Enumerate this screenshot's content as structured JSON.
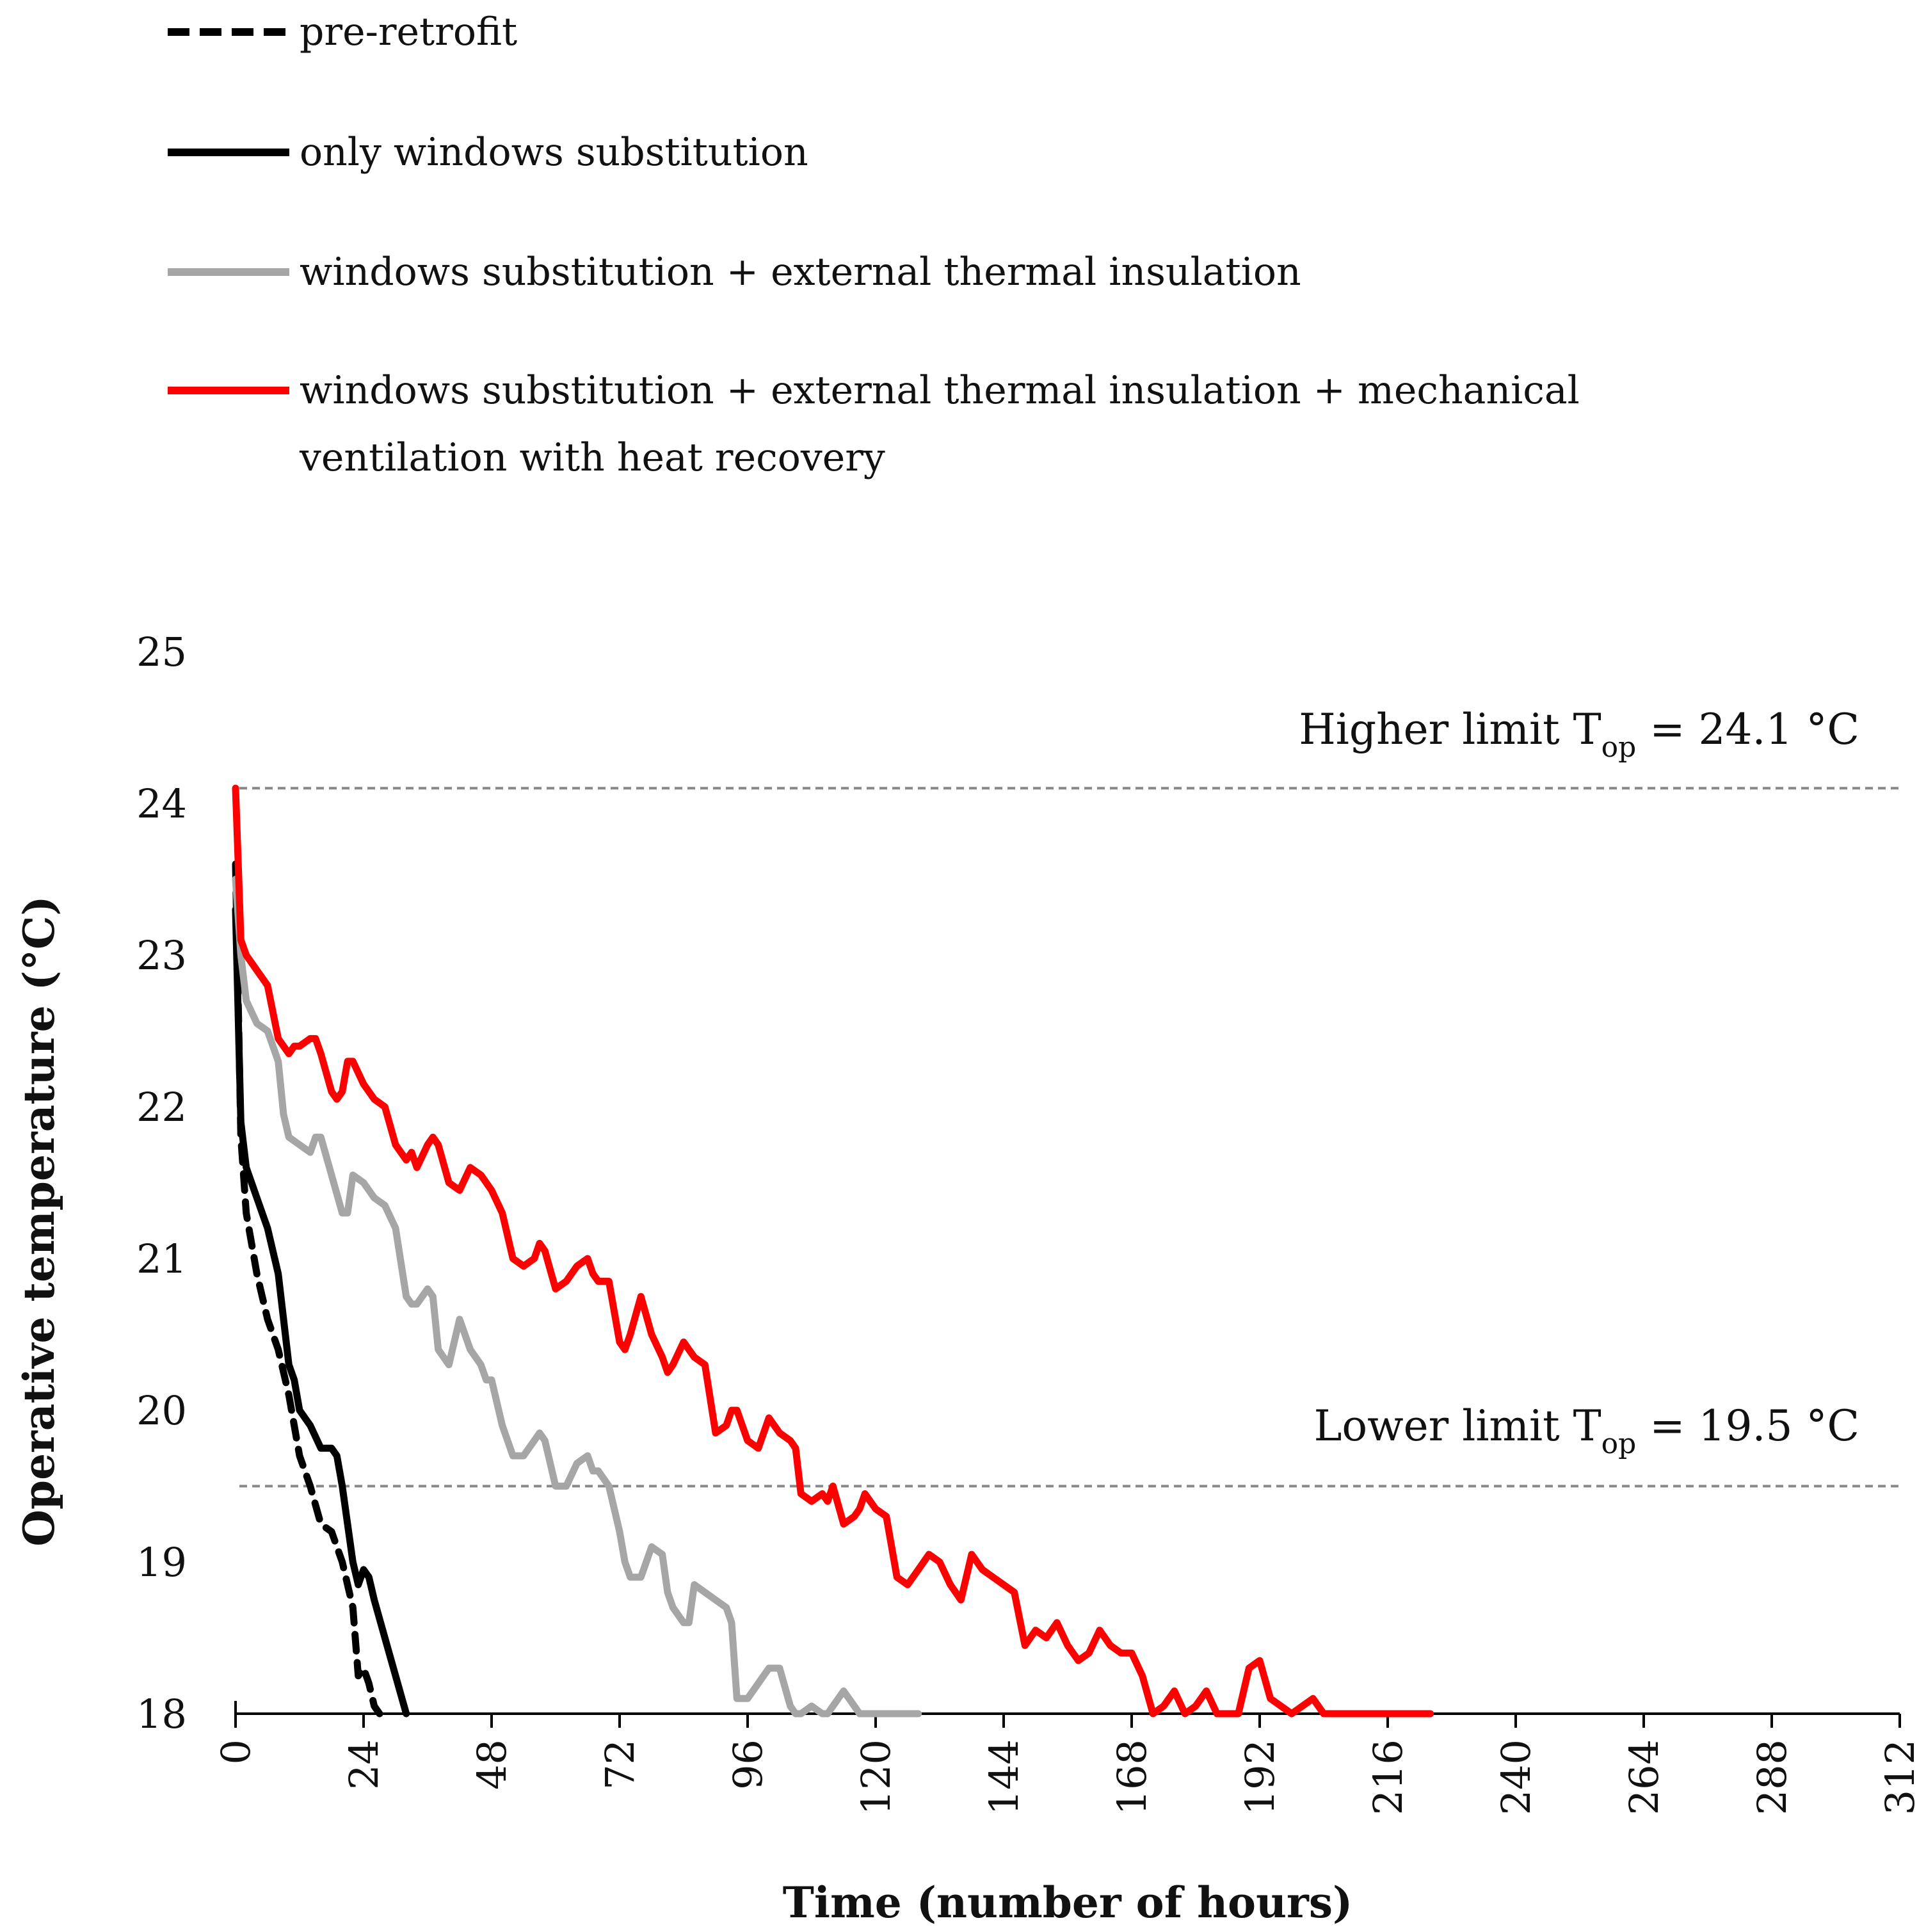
{
  "chart_data": {
    "type": "line",
    "title": "",
    "xlabel": "Time (number of hours)",
    "ylabel": "Operative temperature (°C)",
    "xlim": [
      0,
      312
    ],
    "ylim": [
      18,
      25
    ],
    "xticks": [
      0,
      24,
      48,
      72,
      96,
      120,
      144,
      168,
      192,
      216,
      240,
      264,
      288,
      312
    ],
    "yticks": [
      18,
      19,
      20,
      21,
      22,
      23,
      24,
      25
    ],
    "legend_position": "top",
    "reference_lines": [
      {
        "name": "higher-limit",
        "value": 24.1,
        "label_main": "Higher limit T",
        "label_sub": "op",
        "label_tail": " = 24.1 °C",
        "color": "#888888"
      },
      {
        "name": "lower-limit",
        "value": 19.5,
        "label_main": "Lower limit T",
        "label_sub": "op",
        "label_tail": " = 19.5 °C",
        "color": "#888888"
      }
    ],
    "series": [
      {
        "name": "pre-retrofit",
        "label": [
          "pre-retrofit"
        ],
        "color": "#000000",
        "dash": true,
        "x": [
          0,
          1,
          2,
          3,
          4,
          6,
          8,
          10,
          12,
          14,
          16,
          18,
          20,
          22,
          23,
          24,
          25,
          26,
          27
        ],
        "y": [
          23.6,
          21.8,
          21.3,
          21.1,
          20.9,
          20.6,
          20.4,
          20.1,
          19.7,
          19.5,
          19.25,
          19.2,
          19.0,
          18.7,
          18.25,
          18.3,
          18.2,
          18.05,
          18.0
        ]
      },
      {
        "name": "only-windows-substitution",
        "label": [
          "only windows substitution"
        ],
        "color": "#000000",
        "dash": false,
        "x": [
          0,
          1,
          2,
          3,
          4,
          6,
          8,
          9,
          10,
          11,
          12,
          14,
          16,
          18,
          19,
          20,
          22,
          23,
          24,
          25,
          26,
          28,
          30,
          32
        ],
        "y": [
          23.3,
          21.9,
          21.6,
          21.5,
          21.4,
          21.2,
          20.9,
          20.6,
          20.3,
          20.2,
          20.0,
          19.9,
          19.75,
          19.75,
          19.7,
          19.5,
          19.0,
          18.85,
          18.95,
          18.9,
          18.75,
          18.5,
          18.25,
          18.0
        ]
      },
      {
        "name": "windows-substitution-external-insulation",
        "label": [
          "windows substitution + external thermal insulation"
        ],
        "color": "#a6a6a6",
        "dash": false,
        "x": [
          0,
          1,
          2,
          4,
          6,
          8,
          9,
          10,
          12,
          14,
          15,
          16,
          18,
          20,
          21,
          22,
          24,
          26,
          28,
          30,
          32,
          33,
          34,
          36,
          37,
          38,
          40,
          42,
          44,
          46,
          47,
          48,
          50,
          52,
          54,
          56,
          57,
          58,
          60,
          62,
          64,
          66,
          67,
          68,
          70,
          72,
          73,
          74,
          76,
          78,
          80,
          81,
          82,
          84,
          85,
          86,
          88,
          90,
          92,
          93,
          94,
          96,
          98,
          100,
          102,
          104,
          105,
          106,
          108,
          110,
          111,
          112,
          114,
          116,
          117,
          118,
          120,
          122,
          124,
          126,
          128
        ],
        "y": [
          23.5,
          23.0,
          22.7,
          22.55,
          22.5,
          22.3,
          21.95,
          21.8,
          21.75,
          21.7,
          21.8,
          21.8,
          21.55,
          21.3,
          21.3,
          21.55,
          21.5,
          21.4,
          21.35,
          21.2,
          20.75,
          20.7,
          20.7,
          20.8,
          20.75,
          20.4,
          20.3,
          20.6,
          20.4,
          20.3,
          20.2,
          20.2,
          19.9,
          19.7,
          19.7,
          19.8,
          19.85,
          19.8,
          19.5,
          19.5,
          19.65,
          19.7,
          19.6,
          19.6,
          19.5,
          19.2,
          19.0,
          18.9,
          18.9,
          19.1,
          19.05,
          18.8,
          18.7,
          18.6,
          18.6,
          18.85,
          18.8,
          18.75,
          18.7,
          18.6,
          18.1,
          18.1,
          18.2,
          18.3,
          18.3,
          18.05,
          18.0,
          18.0,
          18.05,
          18.0,
          18.0,
          18.05,
          18.15,
          18.05,
          18.0,
          18.0,
          18.0,
          18.0,
          18.0,
          18.0,
          18.0
        ]
      },
      {
        "name": "windows-substitution-external-insulation-mvhr",
        "label": [
          "windows substitution + external thermal insulation + mechanical",
          "ventilation with heat recovery"
        ],
        "color": "#ff0000",
        "dash": false,
        "x": [
          0,
          0.5,
          1,
          2,
          3,
          4,
          6,
          8,
          9,
          10,
          11,
          12,
          14,
          15,
          16,
          18,
          19,
          20,
          21,
          22,
          24,
          26,
          28,
          30,
          32,
          33,
          34,
          36,
          37,
          38,
          40,
          42,
          44,
          46,
          47,
          48,
          50,
          52,
          54,
          56,
          57,
          58,
          60,
          62,
          64,
          66,
          67,
          68,
          70,
          72,
          73,
          74,
          76,
          78,
          80,
          81,
          82,
          84,
          85,
          86,
          88,
          90,
          92,
          93,
          94,
          96,
          98,
          100,
          102,
          104,
          105,
          106,
          108,
          110,
          111,
          112,
          114,
          116,
          117,
          118,
          120,
          122,
          124,
          126,
          128,
          130,
          132,
          134,
          136,
          138,
          140,
          142,
          144,
          146,
          148,
          150,
          152,
          154,
          156,
          158,
          160,
          162,
          164,
          166,
          168,
          170,
          172,
          174,
          176,
          178,
          180,
          182,
          184,
          186,
          188,
          190,
          192,
          194,
          196,
          198,
          200,
          202,
          204,
          206,
          208,
          210,
          212,
          214,
          216,
          218,
          220,
          222,
          224
        ],
        "y": [
          24.1,
          23.6,
          23.1,
          23.0,
          22.95,
          22.9,
          22.8,
          22.45,
          22.4,
          22.35,
          22.4,
          22.4,
          22.45,
          22.45,
          22.35,
          22.1,
          22.05,
          22.1,
          22.3,
          22.3,
          22.15,
          22.05,
          22.0,
          21.75,
          21.65,
          21.7,
          21.6,
          21.75,
          21.8,
          21.75,
          21.5,
          21.45,
          21.6,
          21.55,
          21.5,
          21.45,
          21.3,
          21.0,
          20.95,
          21.0,
          21.1,
          21.05,
          20.8,
          20.85,
          20.95,
          21.0,
          20.9,
          20.85,
          20.85,
          20.45,
          20.4,
          20.5,
          20.75,
          20.5,
          20.35,
          20.25,
          20.3,
          20.45,
          20.4,
          20.35,
          20.3,
          19.85,
          19.9,
          20.0,
          20.0,
          19.8,
          19.75,
          19.95,
          19.85,
          19.8,
          19.75,
          19.45,
          19.4,
          19.45,
          19.4,
          19.5,
          19.25,
          19.3,
          19.35,
          19.45,
          19.35,
          19.3,
          18.9,
          18.85,
          18.95,
          19.05,
          19.0,
          18.85,
          18.75,
          19.05,
          18.95,
          18.9,
          18.85,
          18.8,
          18.45,
          18.55,
          18.5,
          18.6,
          18.45,
          18.35,
          18.4,
          18.55,
          18.45,
          18.4,
          18.4,
          18.25,
          17.95,
          18.05,
          18.15,
          18.0,
          18.05,
          18.15,
          17.95,
          18.0,
          18.0,
          18.3,
          18.35,
          18.1,
          18.05,
          18.0,
          18.05,
          18.1,
          18.0,
          18.0,
          18.0,
          18.0,
          18.0,
          18.0,
          18.0,
          18.0,
          18.0,
          18.0,
          18.0
        ]
      }
    ]
  }
}
